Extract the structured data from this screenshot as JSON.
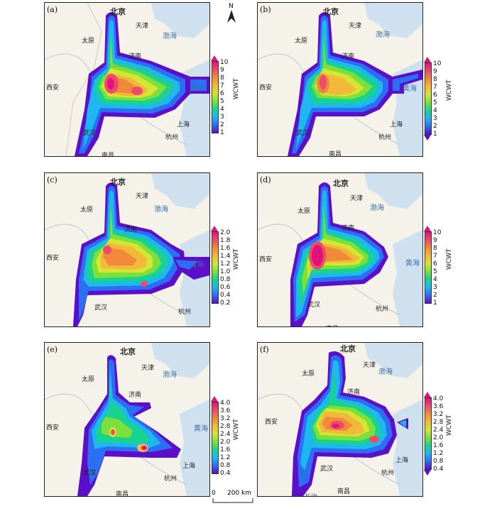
{
  "panels": [
    {
      "label": "(a)",
      "legend_title": "WCWT",
      "ticks": [
        "10",
        "9",
        "8",
        "7",
        "6",
        "5",
        "4",
        "3",
        "2",
        "1"
      ]
    },
    {
      "label": "(b)",
      "legend_title": "WCWT",
      "ticks": [
        "10",
        "9",
        "8",
        "7",
        "6",
        "5",
        "4",
        "3",
        "2",
        "1"
      ]
    },
    {
      "label": "(c)",
      "legend_title": "WCWT",
      "ticks": [
        "2.0",
        "1.8",
        "1.6",
        "1.4",
        "1.2",
        "1.0",
        "0.8",
        "0.6",
        "0.4",
        "0.2"
      ]
    },
    {
      "label": "(d)",
      "legend_title": "WCWT",
      "ticks": [
        "10",
        "9",
        "8",
        "7",
        "6",
        "5",
        "4",
        "3",
        "2",
        "1"
      ]
    },
    {
      "label": "(e)",
      "legend_title": "WCWT",
      "ticks": [
        "4.0",
        "3.6",
        "3.2",
        "2.8",
        "2.4",
        "2.0",
        "1.6",
        "1.2",
        "0.8",
        "0.4"
      ]
    },
    {
      "label": "(f)",
      "legend_title": "WCWT",
      "ticks": [
        "4.0",
        "3.6",
        "3.2",
        "2.8",
        "2.4",
        "2.0",
        "1.6",
        "1.2",
        "0.8",
        "0.4"
      ]
    }
  ],
  "cities": {
    "beijing": "北京",
    "tianjin": "天津",
    "taiyuan": "太原",
    "jinan": "济南",
    "xian": "西安",
    "wuhan": "武汉",
    "hefei": "合肥",
    "shanghai": "上海",
    "hangzhou": "杭州",
    "nanchang": "南昌",
    "changsha": "长沙"
  },
  "seas": {
    "bohai": "渤海",
    "huanghai": "黄海"
  },
  "north_label": "N",
  "scale": {
    "start": "0",
    "end": "200 km"
  },
  "colors": {
    "c1": "#5b0fc9",
    "c2": "#2c6ff2",
    "c3": "#1fb7f0",
    "c4": "#18d38f",
    "c5": "#7de03a",
    "c6": "#d4e533",
    "c7": "#f2b938",
    "c8": "#f08a3a",
    "c9": "#ec4b6a",
    "c10": "#e3127b",
    "sea": "#cfe0ef",
    "land": "#f5f2ea"
  }
}
